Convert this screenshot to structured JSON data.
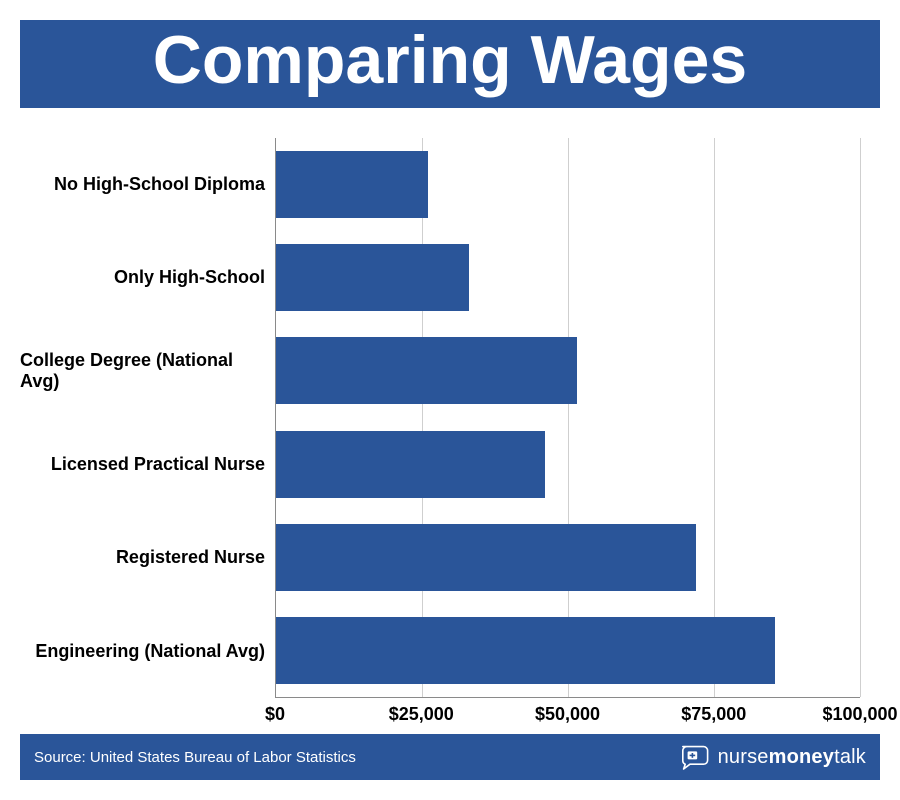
{
  "title": "Comparing Wages",
  "title_fontsize": 68,
  "brand_color": "#2a5599",
  "background_color": "#ffffff",
  "chart": {
    "type": "bar",
    "orientation": "horizontal",
    "xlim": [
      0,
      100000
    ],
    "xticks": [
      0,
      25000,
      50000,
      75000,
      100000
    ],
    "xtick_labels": [
      "$0",
      "$25,000",
      "$50,000",
      "$75,000",
      "$100,000"
    ],
    "tick_fontsize": 18,
    "y_label_fontsize": 18,
    "grid_color": "#cfcfcf",
    "axis_color": "#8a8a8a",
    "bar_color": "#2a5599",
    "bar_height_ratio": 0.72,
    "categories": [
      "No High-School Diploma",
      "Only High-School",
      "College Degree (National Avg)",
      "Licensed Practical Nurse",
      "Registered Nurse",
      "Engineering (National Avg)"
    ],
    "values": [
      26000,
      33000,
      51500,
      46000,
      72000,
      85500
    ]
  },
  "footer": {
    "source": "Source: United States Bureau of Labor Statistics",
    "logo_word1": "nurse",
    "logo_word2": "money",
    "logo_word3": "talk"
  }
}
